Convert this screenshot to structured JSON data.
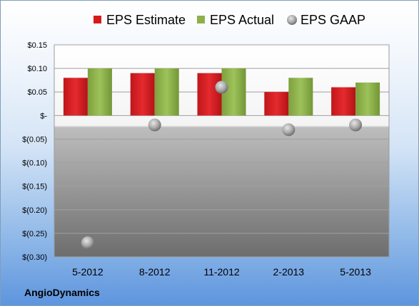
{
  "company": "AngioDynamics",
  "colors": {
    "estimate": "#d7191c",
    "actual": "#8db04a",
    "gaap": "#a8a8a8"
  },
  "chart_data": {
    "type": "bar",
    "categories": [
      "5-2012",
      "8-2012",
      "11-2012",
      "2-2013",
      "5-2013"
    ],
    "series": [
      {
        "name": "EPS Estimate",
        "kind": "bar",
        "values": [
          0.08,
          0.09,
          0.09,
          0.05,
          0.06
        ]
      },
      {
        "name": "EPS Actual",
        "kind": "bar",
        "values": [
          0.1,
          0.1,
          0.1,
          0.08,
          0.07
        ]
      },
      {
        "name": "EPS GAAP",
        "kind": "scatter",
        "values": [
          -0.27,
          -0.02,
          0.06,
          -0.03,
          -0.02
        ]
      }
    ],
    "yticks": [
      0.15,
      0.1,
      0.05,
      0,
      -0.05,
      -0.1,
      -0.15,
      -0.2,
      -0.25,
      -0.3
    ],
    "ytick_labels": [
      "$0.15",
      "$0.10",
      "$0.05",
      "$-",
      "$(0.05)",
      "$(0.10)",
      "$(0.15)",
      "$(0.20)",
      "$(0.25)",
      "$(0.30)"
    ],
    "ylim": [
      -0.3,
      0.15
    ],
    "grid": true,
    "legend": "top"
  }
}
